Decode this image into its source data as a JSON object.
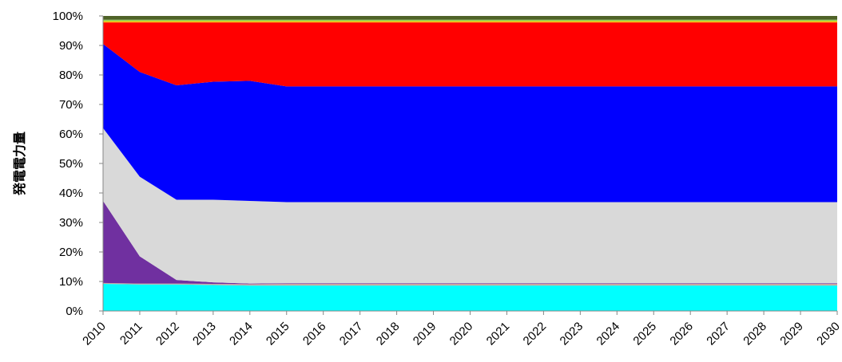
{
  "chart_data": {
    "type": "area",
    "stacked": true,
    "percent": true,
    "title": "",
    "xlabel": "",
    "ylabel": "発電電力量",
    "ylim": [
      0,
      100
    ],
    "y_ticks": [
      "0%",
      "10%",
      "20%",
      "30%",
      "40%",
      "50%",
      "60%",
      "70%",
      "80%",
      "90%",
      "100%"
    ],
    "x": [
      "2010",
      "2011",
      "2012",
      "2013",
      "2014",
      "2015",
      "2016",
      "2017",
      "2018",
      "2019",
      "2020",
      "2021",
      "2022",
      "2023",
      "2024",
      "2025",
      "2026",
      "2027",
      "2028",
      "2029",
      "2030"
    ],
    "grid": false,
    "legend": "none",
    "series": [
      {
        "color": "#00ffff",
        "values": [
          9.2,
          9.0,
          9.0,
          8.8,
          8.6,
          8.6,
          8.6,
          8.6,
          8.6,
          8.6,
          8.6,
          8.6,
          8.6,
          8.6,
          8.6,
          8.6,
          8.6,
          8.6,
          8.6,
          8.6,
          8.6
        ]
      },
      {
        "color": "#c9a6a0",
        "values": [
          0.3,
          0.3,
          0.3,
          0.4,
          0.5,
          0.6,
          0.6,
          0.6,
          0.6,
          0.6,
          0.6,
          0.6,
          0.6,
          0.6,
          0.6,
          0.6,
          0.6,
          0.6,
          0.6,
          0.6,
          0.6
        ]
      },
      {
        "color": "#7030a0",
        "values": [
          27.8,
          9.2,
          1.2,
          0.5,
          0.2,
          0.2,
          0.2,
          0.2,
          0.2,
          0.2,
          0.2,
          0.2,
          0.2,
          0.2,
          0.2,
          0.2,
          0.2,
          0.2,
          0.2,
          0.2,
          0.2
        ]
      },
      {
        "color": "#d9d9d9",
        "values": [
          24.7,
          27.0,
          27.2,
          28.0,
          28.0,
          27.5,
          27.5,
          27.5,
          27.5,
          27.5,
          27.5,
          27.5,
          27.5,
          27.5,
          27.5,
          27.5,
          27.5,
          27.5,
          27.5,
          27.5,
          27.5
        ]
      },
      {
        "color": "#0000ff",
        "values": [
          28.5,
          35.5,
          38.8,
          40.0,
          40.7,
          39.2,
          39.2,
          39.2,
          39.2,
          39.2,
          39.2,
          39.2,
          39.2,
          39.2,
          39.2,
          39.2,
          39.2,
          39.2,
          39.2,
          39.2,
          39.2
        ]
      },
      {
        "color": "#ff0000",
        "values": [
          7.3,
          16.8,
          21.3,
          20.1,
          19.8,
          21.7,
          21.7,
          21.7,
          21.7,
          21.7,
          21.7,
          21.7,
          21.7,
          21.7,
          21.7,
          21.7,
          21.7,
          21.7,
          21.7,
          21.7,
          21.7
        ]
      },
      {
        "color": "#ffc000",
        "values": [
          0.4,
          0.4,
          0.4,
          0.4,
          0.4,
          0.4,
          0.4,
          0.4,
          0.4,
          0.4,
          0.4,
          0.4,
          0.4,
          0.4,
          0.4,
          0.4,
          0.4,
          0.4,
          0.4,
          0.4,
          0.4
        ]
      },
      {
        "color": "#92d050",
        "values": [
          0.5,
          0.5,
          0.5,
          0.5,
          0.5,
          0.5,
          0.5,
          0.5,
          0.5,
          0.5,
          0.5,
          0.5,
          0.5,
          0.5,
          0.5,
          0.5,
          0.5,
          0.5,
          0.5,
          0.5,
          0.5
        ]
      },
      {
        "color": "#4f6228",
        "values": [
          1.3,
          1.3,
          1.3,
          1.3,
          1.3,
          1.3,
          1.3,
          1.3,
          1.3,
          1.3,
          1.3,
          1.3,
          1.3,
          1.3,
          1.3,
          1.3,
          1.3,
          1.3,
          1.3,
          1.3,
          1.3
        ]
      }
    ]
  }
}
